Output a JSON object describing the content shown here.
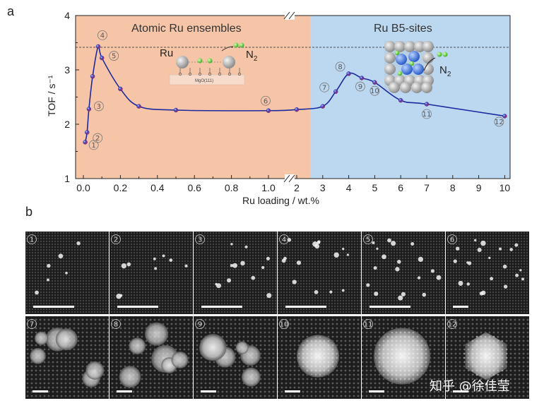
{
  "panel_a_label": "a",
  "panel_b_label": "b",
  "watermark": "知乎 @徐佳莹",
  "chart_data": {
    "type": "line",
    "title": "",
    "xlabel": "Ru loading / wt.%",
    "ylabel": "TOF / s⁻¹",
    "ylim": [
      1,
      4
    ],
    "y_ticks": [
      "1",
      "2",
      "3",
      "4"
    ],
    "x_ticks_left": [
      "0.0",
      "0.2",
      "0.4",
      "0.6",
      "0.8",
      "1.0"
    ],
    "x_ticks_right": [
      "2",
      "3",
      "4",
      "5",
      "6",
      "7",
      "8",
      "9",
      "10"
    ],
    "x_break": "//",
    "regions": [
      {
        "name": "Atomic Ru ensembles",
        "color": "#f6c5a8",
        "range": "0–2.5 wt.%"
      },
      {
        "name": "Ru B5-sites",
        "color": "#bcd8f1",
        "range": "2.5–10 wt.%"
      }
    ],
    "reference_line": {
      "y": 3.43,
      "style": "dashed"
    },
    "series": [
      {
        "name": "TOF",
        "color": "#1b2a9e",
        "points": [
          {
            "x": 0.01,
            "y": 1.67,
            "label": "①"
          },
          {
            "x": 0.02,
            "y": 1.85,
            "label": "②"
          },
          {
            "x": 0.03,
            "y": 2.28,
            "label": "③"
          },
          {
            "x": 0.05,
            "y": 2.88,
            "label": ""
          },
          {
            "x": 0.08,
            "y": 3.43,
            "label": "④"
          },
          {
            "x": 0.1,
            "y": 3.22,
            "label": "⑤"
          },
          {
            "x": 0.2,
            "y": 2.65,
            "label": ""
          },
          {
            "x": 0.3,
            "y": 2.33,
            "label": ""
          },
          {
            "x": 0.5,
            "y": 2.26,
            "label": ""
          },
          {
            "x": 1.0,
            "y": 2.25,
            "label": "⑥"
          },
          {
            "x": 2.0,
            "y": 2.27,
            "label": ""
          },
          {
            "x": 3.0,
            "y": 2.33,
            "label": ""
          },
          {
            "x": 3.5,
            "y": 2.6,
            "label": "⑦"
          },
          {
            "x": 4.0,
            "y": 2.93,
            "label": "⑧"
          },
          {
            "x": 4.5,
            "y": 2.85,
            "label": "⑨"
          },
          {
            "x": 5.0,
            "y": 2.77,
            "label": "⑩"
          },
          {
            "x": 6.0,
            "y": 2.44,
            "label": ""
          },
          {
            "x": 7.0,
            "y": 2.37,
            "label": "⑪"
          },
          {
            "x": 10.0,
            "y": 2.15,
            "label": "⑫"
          }
        ]
      }
    ]
  },
  "inset_left": {
    "ru_label": "Ru",
    "n2_label": "N",
    "n2_sub": "2",
    "substrate_label": "MgO(111)"
  },
  "inset_right": {
    "n2_label": "N",
    "n2_sub": "2"
  },
  "micrographs": [
    {
      "label": "①",
      "scale": "long"
    },
    {
      "label": "②",
      "scale": "long"
    },
    {
      "label": "③",
      "scale": "long"
    },
    {
      "label": "④",
      "scale": "long"
    },
    {
      "label": "⑤",
      "scale": "long"
    },
    {
      "label": "⑥",
      "scale": "short"
    },
    {
      "label": "⑦",
      "scale": "short"
    },
    {
      "label": "⑧",
      "scale": "short"
    },
    {
      "label": "⑨",
      "scale": "short"
    },
    {
      "label": "⑩",
      "scale": "short"
    },
    {
      "label": "⑪",
      "scale": "short"
    },
    {
      "label": "⑫",
      "scale": "short"
    }
  ]
}
